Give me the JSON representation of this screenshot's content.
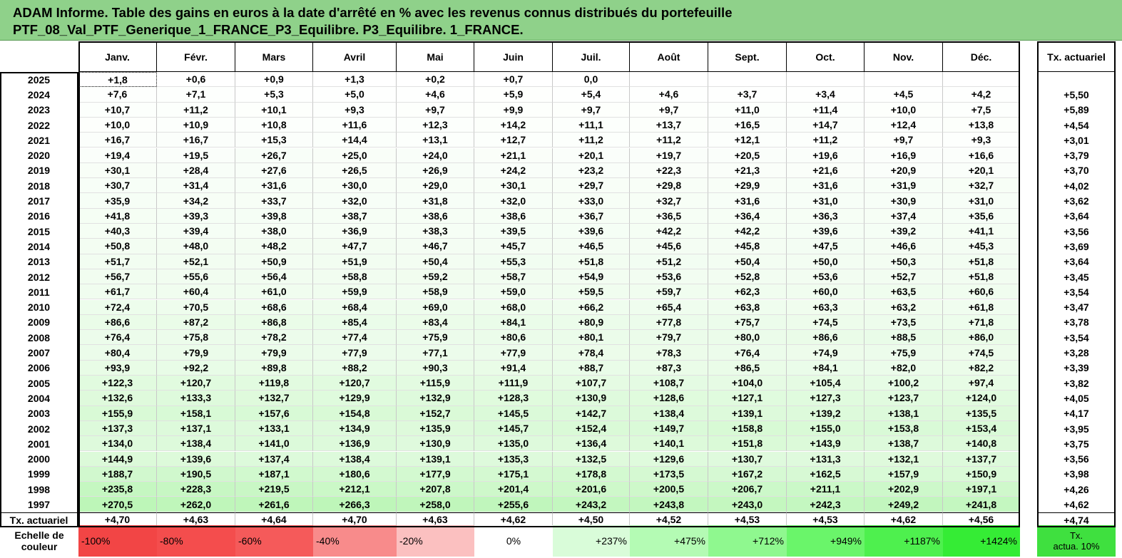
{
  "title": {
    "line1": "ADAM Informe. Table des gains en euros à la date d'arrêté en % avec les revenus connus distribués du portefeuille",
    "line2": "PTF_08_Val_PTF_Generique_1_FRANCE_P3_Equilibre. P3_Equilibre. 1_FRANCE."
  },
  "months": [
    "Janv.",
    "Févr.",
    "Mars",
    "Avril",
    "Mai",
    "Juin",
    "Juil.",
    "Août",
    "Sept.",
    "Oct.",
    "Nov.",
    "Déc."
  ],
  "tx_header": "Tx. actuariel",
  "rows": [
    {
      "year": "2025",
      "values": [
        "+1,8",
        "+0,6",
        "+0,9",
        "+1,3",
        "+0,2",
        "+0,7",
        "0,0",
        "",
        "",
        "",
        "",
        ""
      ],
      "tx": ""
    },
    {
      "year": "2024",
      "values": [
        "+7,6",
        "+7,1",
        "+5,3",
        "+5,0",
        "+4,6",
        "+5,9",
        "+5,4",
        "+4,6",
        "+3,7",
        "+3,4",
        "+4,5",
        "+4,2"
      ],
      "tx": "+5,50"
    },
    {
      "year": "2023",
      "values": [
        "+10,7",
        "+11,2",
        "+10,1",
        "+9,3",
        "+9,7",
        "+9,9",
        "+9,7",
        "+9,7",
        "+11,0",
        "+11,4",
        "+10,0",
        "+7,5"
      ],
      "tx": "+5,89"
    },
    {
      "year": "2022",
      "values": [
        "+10,0",
        "+10,9",
        "+10,8",
        "+11,6",
        "+12,3",
        "+14,2",
        "+11,1",
        "+13,7",
        "+16,5",
        "+14,7",
        "+12,4",
        "+13,8"
      ],
      "tx": "+4,54"
    },
    {
      "year": "2021",
      "values": [
        "+16,7",
        "+16,7",
        "+15,3",
        "+14,4",
        "+13,1",
        "+12,7",
        "+11,2",
        "+11,2",
        "+12,1",
        "+11,2",
        "+9,7",
        "+9,3"
      ],
      "tx": "+3,01"
    },
    {
      "year": "2020",
      "values": [
        "+19,4",
        "+19,5",
        "+26,7",
        "+25,0",
        "+24,0",
        "+21,1",
        "+20,1",
        "+19,7",
        "+20,5",
        "+19,6",
        "+16,9",
        "+16,6"
      ],
      "tx": "+3,79"
    },
    {
      "year": "2019",
      "values": [
        "+30,1",
        "+28,4",
        "+27,6",
        "+26,5",
        "+26,9",
        "+24,2",
        "+23,2",
        "+22,3",
        "+21,3",
        "+21,6",
        "+20,9",
        "+20,1"
      ],
      "tx": "+3,70"
    },
    {
      "year": "2018",
      "values": [
        "+30,7",
        "+31,4",
        "+31,6",
        "+30,0",
        "+29,0",
        "+30,1",
        "+29,7",
        "+29,8",
        "+29,9",
        "+31,6",
        "+31,9",
        "+32,7"
      ],
      "tx": "+4,02"
    },
    {
      "year": "2017",
      "values": [
        "+35,9",
        "+34,2",
        "+33,7",
        "+32,0",
        "+31,8",
        "+32,0",
        "+33,0",
        "+32,7",
        "+31,6",
        "+31,0",
        "+30,9",
        "+31,0"
      ],
      "tx": "+3,62"
    },
    {
      "year": "2016",
      "values": [
        "+41,8",
        "+39,3",
        "+39,8",
        "+38,7",
        "+38,6",
        "+38,6",
        "+36,7",
        "+36,5",
        "+36,4",
        "+36,3",
        "+37,4",
        "+35,6"
      ],
      "tx": "+3,64"
    },
    {
      "year": "2015",
      "values": [
        "+40,3",
        "+39,4",
        "+38,0",
        "+36,9",
        "+38,3",
        "+39,5",
        "+39,6",
        "+42,2",
        "+42,2",
        "+39,6",
        "+39,2",
        "+41,1"
      ],
      "tx": "+3,56"
    },
    {
      "year": "2014",
      "values": [
        "+50,8",
        "+48,0",
        "+48,2",
        "+47,7",
        "+46,7",
        "+45,7",
        "+46,5",
        "+45,6",
        "+45,8",
        "+47,5",
        "+46,6",
        "+45,3"
      ],
      "tx": "+3,69"
    },
    {
      "year": "2013",
      "values": [
        "+51,7",
        "+52,1",
        "+50,9",
        "+51,9",
        "+50,4",
        "+55,3",
        "+51,8",
        "+51,2",
        "+50,4",
        "+50,0",
        "+50,3",
        "+51,8"
      ],
      "tx": "+3,64"
    },
    {
      "year": "2012",
      "values": [
        "+56,7",
        "+55,6",
        "+56,4",
        "+58,8",
        "+59,2",
        "+58,7",
        "+54,9",
        "+53,6",
        "+52,8",
        "+53,6",
        "+52,7",
        "+51,8"
      ],
      "tx": "+3,45"
    },
    {
      "year": "2011",
      "values": [
        "+61,7",
        "+60,4",
        "+61,0",
        "+59,9",
        "+58,9",
        "+59,0",
        "+59,5",
        "+59,7",
        "+62,3",
        "+60,0",
        "+63,5",
        "+60,6"
      ],
      "tx": "+3,54"
    },
    {
      "year": "2010",
      "values": [
        "+72,4",
        "+70,5",
        "+68,6",
        "+68,4",
        "+69,0",
        "+68,0",
        "+66,2",
        "+65,4",
        "+63,8",
        "+63,3",
        "+63,2",
        "+61,8"
      ],
      "tx": "+3,47"
    },
    {
      "year": "2009",
      "values": [
        "+86,6",
        "+87,2",
        "+86,8",
        "+85,4",
        "+83,4",
        "+84,1",
        "+80,9",
        "+77,8",
        "+75,7",
        "+74,5",
        "+73,5",
        "+71,8"
      ],
      "tx": "+3,78"
    },
    {
      "year": "2008",
      "values": [
        "+76,4",
        "+75,8",
        "+78,2",
        "+77,4",
        "+75,9",
        "+80,6",
        "+80,1",
        "+79,7",
        "+80,0",
        "+86,6",
        "+88,5",
        "+86,0"
      ],
      "tx": "+3,54"
    },
    {
      "year": "2007",
      "values": [
        "+80,4",
        "+79,9",
        "+79,9",
        "+77,9",
        "+77,1",
        "+77,9",
        "+78,4",
        "+78,3",
        "+76,4",
        "+74,9",
        "+75,9",
        "+74,5"
      ],
      "tx": "+3,28"
    },
    {
      "year": "2006",
      "values": [
        "+93,9",
        "+92,2",
        "+89,8",
        "+88,2",
        "+90,3",
        "+91,4",
        "+88,7",
        "+87,3",
        "+86,5",
        "+84,1",
        "+82,0",
        "+82,2"
      ],
      "tx": "+3,39"
    },
    {
      "year": "2005",
      "values": [
        "+122,3",
        "+120,7",
        "+119,8",
        "+120,7",
        "+115,9",
        "+111,9",
        "+107,7",
        "+108,7",
        "+104,0",
        "+105,4",
        "+100,2",
        "+97,4"
      ],
      "tx": "+3,82"
    },
    {
      "year": "2004",
      "values": [
        "+132,6",
        "+133,3",
        "+132,7",
        "+129,9",
        "+132,9",
        "+128,3",
        "+130,9",
        "+128,6",
        "+127,1",
        "+127,3",
        "+123,7",
        "+124,0"
      ],
      "tx": "+4,05"
    },
    {
      "year": "2003",
      "values": [
        "+155,9",
        "+158,1",
        "+157,6",
        "+154,8",
        "+152,7",
        "+145,5",
        "+142,7",
        "+138,4",
        "+139,1",
        "+139,2",
        "+138,1",
        "+135,5"
      ],
      "tx": "+4,17"
    },
    {
      "year": "2002",
      "values": [
        "+137,3",
        "+137,1",
        "+133,1",
        "+134,9",
        "+135,9",
        "+145,7",
        "+152,4",
        "+149,7",
        "+158,8",
        "+155,0",
        "+153,8",
        "+153,4"
      ],
      "tx": "+3,95"
    },
    {
      "year": "2001",
      "values": [
        "+134,0",
        "+138,4",
        "+141,0",
        "+136,9",
        "+130,9",
        "+135,0",
        "+136,4",
        "+140,1",
        "+151,8",
        "+143,9",
        "+138,7",
        "+140,8"
      ],
      "tx": "+3,75"
    },
    {
      "year": "2000",
      "values": [
        "+144,9",
        "+139,6",
        "+137,4",
        "+138,4",
        "+139,1",
        "+135,3",
        "+132,5",
        "+129,6",
        "+130,7",
        "+131,3",
        "+132,1",
        "+137,7"
      ],
      "tx": "+3,56"
    },
    {
      "year": "1999",
      "values": [
        "+188,7",
        "+190,5",
        "+187,1",
        "+180,6",
        "+177,9",
        "+175,1",
        "+178,8",
        "+173,5",
        "+167,2",
        "+162,5",
        "+157,9",
        "+150,9"
      ],
      "tx": "+3,98"
    },
    {
      "year": "1998",
      "values": [
        "+235,8",
        "+228,3",
        "+219,5",
        "+212,1",
        "+207,8",
        "+201,4",
        "+201,6",
        "+200,5",
        "+206,7",
        "+211,1",
        "+202,9",
        "+197,1"
      ],
      "tx": "+4,26"
    },
    {
      "year": "1997",
      "values": [
        "+270,5",
        "+262,0",
        "+261,6",
        "+266,3",
        "+258,0",
        "+255,6",
        "+243,2",
        "+243,8",
        "+243,0",
        "+242,3",
        "+249,2",
        "+241,8"
      ],
      "tx": "+4,62"
    }
  ],
  "tx_row": {
    "label": "Tx. actuariel",
    "values": [
      "+4,70",
      "+4,63",
      "+4,64",
      "+4,70",
      "+4,63",
      "+4,62",
      "+4,50",
      "+4,52",
      "+4,53",
      "+4,53",
      "+4,62",
      "+4,56"
    ],
    "tx": "+4,74"
  },
  "scale": {
    "label_line1": "Echelle de",
    "label_line2": "couleur",
    "steps": [
      "-100%",
      "-80%",
      "-60%",
      "-40%",
      "-20%",
      "0%",
      "+237%",
      "+475%",
      "+712%",
      "+949%",
      "+1187%",
      "+1424%"
    ],
    "colors": [
      "#f24545",
      "#f44d4d",
      "#f55a5a",
      "#f88b8b",
      "#fbc0c0",
      "#ffffff",
      "#d9fcd9",
      "#b4fbb4",
      "#8ff88f",
      "#6af56a",
      "#4ef04e",
      "#35ec35"
    ],
    "tx_line1": "Tx.",
    "tx_line2": "actua. 10%",
    "tx_color": "#3fe03f"
  },
  "colors": {
    "title_bg": "#8fd18a",
    "cell_low": "#ffffff",
    "cell_high": "#b8f5b3"
  }
}
